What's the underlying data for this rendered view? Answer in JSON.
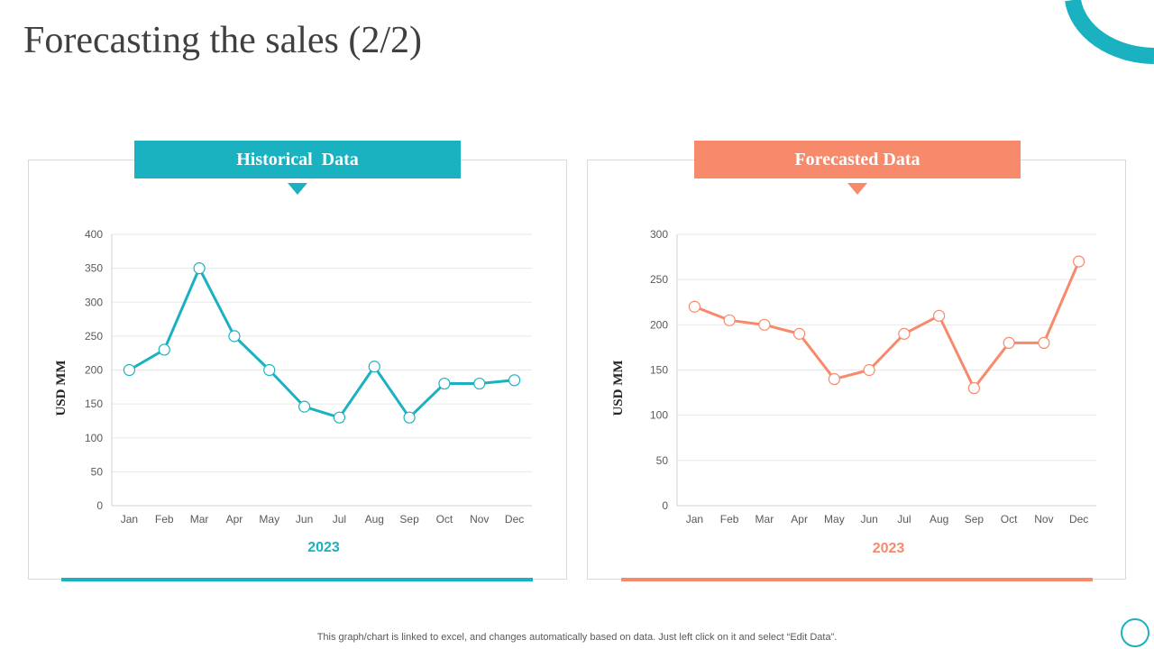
{
  "page": {
    "title": "Forecasting the sales (2/2)",
    "footer": "This graph/chart is linked to excel,  and changes automatically based on data. Just left click on it and select “Edit Data”."
  },
  "colors": {
    "teal": "#1ab1c1",
    "coral": "#f68a6b",
    "grid": "#e8e8e8",
    "axis_text": "#595959"
  },
  "panels": {
    "historical": {
      "header": "Historical  Data"
    },
    "forecast": {
      "header": "Forecasted Data"
    }
  },
  "chart_data": [
    {
      "type": "line",
      "id": "historical",
      "title": "Historical  Data",
      "categories": [
        "Jan",
        "Feb",
        "Mar",
        "Apr",
        "May",
        "Jun",
        "Jul",
        "Aug",
        "Sep",
        "Oct",
        "Nov",
        "Dec"
      ],
      "series": [
        {
          "name": "Historical",
          "values": [
            200,
            230,
            350,
            250,
            200,
            146,
            130,
            205,
            130,
            180,
            180,
            185
          ]
        }
      ],
      "xlabel": "2023",
      "ylabel": "USD MM",
      "ylim": [
        0,
        400
      ],
      "yticks": [
        0,
        50,
        100,
        150,
        200,
        250,
        300,
        350,
        400
      ],
      "grid": true,
      "color": "#1ab1c1"
    },
    {
      "type": "line",
      "id": "forecast",
      "title": "Forecasted Data",
      "categories": [
        "Jan",
        "Feb",
        "Mar",
        "Apr",
        "May",
        "Jun",
        "Jul",
        "Aug",
        "Sep",
        "Oct",
        "Nov",
        "Dec"
      ],
      "series": [
        {
          "name": "Forecast",
          "values": [
            220,
            205,
            200,
            190,
            140,
            150,
            190,
            210,
            130,
            180,
            180,
            270
          ]
        }
      ],
      "xlabel": "2023",
      "ylabel": "USD MM",
      "ylim": [
        0,
        300
      ],
      "yticks": [
        0,
        50,
        100,
        150,
        200,
        250,
        300
      ],
      "grid": true,
      "color": "#f68a6b"
    }
  ]
}
